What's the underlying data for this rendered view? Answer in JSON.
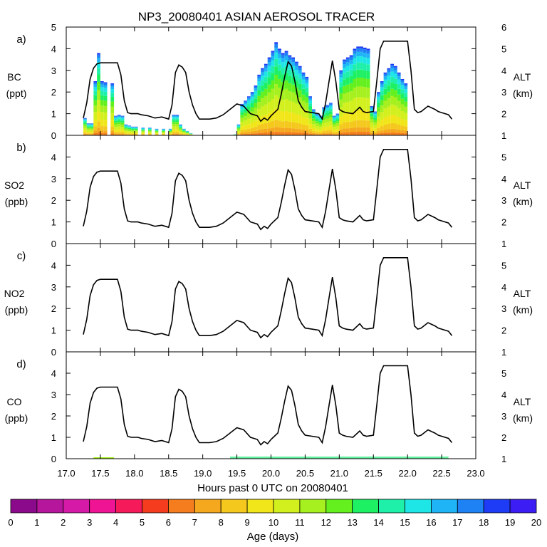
{
  "chart_data": {
    "type": "area",
    "title": "NP3_20080401 ASIAN AEROSOL TRACER",
    "xlabel": "Hours past 0 UTC on 20080401",
    "x_ticks": [
      "17.0",
      "17.5",
      "18.0",
      "18.5",
      "19.0",
      "19.5",
      "20.0",
      "20.5",
      "21.0",
      "21.5",
      "22.0",
      "22.5",
      "23.0"
    ],
    "xlim": [
      17.0,
      23.0
    ],
    "right_axis": {
      "label": "ALT",
      "unit": "(km)"
    },
    "altitude_km": {
      "x": [
        17.25,
        17.3,
        17.35,
        17.4,
        17.45,
        17.5,
        17.55,
        17.6,
        17.65,
        17.7,
        17.75,
        17.8,
        17.85,
        17.9,
        17.95,
        18.0,
        18.05,
        18.1,
        18.2,
        18.3,
        18.4,
        18.5,
        18.55,
        18.6,
        18.65,
        18.7,
        18.75,
        18.8,
        18.85,
        18.9,
        18.95,
        19.0,
        19.1,
        19.2,
        19.3,
        19.4,
        19.5,
        19.6,
        19.7,
        19.8,
        19.85,
        19.9,
        19.95,
        20.0,
        20.1,
        20.15,
        20.2,
        20.25,
        20.3,
        20.35,
        20.4,
        20.45,
        20.5,
        20.6,
        20.7,
        20.75,
        20.8,
        20.85,
        20.9,
        20.95,
        21.0,
        21.05,
        21.1,
        21.2,
        21.3,
        21.35,
        21.4,
        21.5,
        21.55,
        21.6,
        21.65,
        21.7,
        21.8,
        21.9,
        22.0,
        22.05,
        22.1,
        22.15,
        22.2,
        22.3,
        22.4,
        22.45,
        22.5,
        22.6,
        22.65
      ],
      "y": [
        1.8,
        2.5,
        3.6,
        4.1,
        4.3,
        4.35,
        4.35,
        4.35,
        4.35,
        4.35,
        4.35,
        3.8,
        2.6,
        2.05,
        2.0,
        2.0,
        2.0,
        1.95,
        1.9,
        1.8,
        1.85,
        1.75,
        2.4,
        3.9,
        4.25,
        4.15,
        3.9,
        3.0,
        2.4,
        2.0,
        1.75,
        1.75,
        1.75,
        1.8,
        1.95,
        2.2,
        2.45,
        2.35,
        2.0,
        1.9,
        1.65,
        1.8,
        1.7,
        1.9,
        2.2,
        2.9,
        3.7,
        4.4,
        4.2,
        3.5,
        2.6,
        2.3,
        2.1,
        2.05,
        2.0,
        1.75,
        2.5,
        3.5,
        4.45,
        3.5,
        2.2,
        2.1,
        2.05,
        2.0,
        2.3,
        2.1,
        2.05,
        2.1,
        3.5,
        5.0,
        5.35,
        5.35,
        5.35,
        5.35,
        5.35,
        4.0,
        2.2,
        2.05,
        2.1,
        2.35,
        2.2,
        2.1,
        2.05,
        1.95,
        1.75
      ]
    },
    "panels": [
      {
        "tag": "a)",
        "ylabel": "BC",
        "unit": "(ppt)",
        "ylim": [
          0,
          5
        ],
        "y_ticks": [
          "0",
          "1",
          "2",
          "3",
          "4",
          "5"
        ],
        "right_ticks": [
          "1",
          "2",
          "3",
          "4",
          "5",
          "6"
        ],
        "alt_range": [
          1,
          6
        ],
        "tracer_total": [
          0.8,
          0.55,
          0.55,
          2.5,
          3.8,
          2.5,
          2.45,
          2.4,
          0.9,
          0.95,
          0.9,
          0.5,
          0.45,
          0.4,
          0.4,
          0.35,
          0.35,
          0.3,
          0.3,
          0.3,
          0.95,
          0.95,
          0.5,
          0.3,
          0.2,
          0.1,
          0.0,
          0.0,
          0.0,
          0.0,
          0.0,
          0.0,
          0.0,
          0.0,
          0.05,
          0.5,
          1.45,
          1.6,
          1.8,
          2.0,
          2.3,
          2.8,
          3.1,
          3.3,
          3.6,
          3.9,
          4.3,
          4.0,
          3.8,
          3.9,
          3.7,
          3.6,
          3.4,
          3.2,
          2.9,
          2.7,
          1.8,
          1.2,
          1.0,
          0.9,
          1.3,
          1.4,
          1.5,
          0.9,
          1.0,
          3.0,
          3.5,
          3.6,
          3.7,
          4.0,
          4.1,
          4.1,
          4.05,
          4.0,
          1.35,
          1.1,
          2.0,
          2.5,
          2.9,
          3.1,
          3.3,
          3.2,
          2.9,
          2.6,
          2.4
        ],
        "tracer_x": [
          17.25,
          17.3,
          17.35,
          17.4,
          17.45,
          17.5,
          17.55,
          17.65,
          17.7,
          17.75,
          17.8,
          17.85,
          17.9,
          17.95,
          18.0,
          18.1,
          18.2,
          18.3,
          18.4,
          18.5,
          18.55,
          18.6,
          18.65,
          18.7,
          18.75,
          18.8,
          18.85,
          18.9,
          18.95,
          19.0,
          19.1,
          19.2,
          19.3,
          19.4,
          19.45,
          19.5,
          19.55,
          19.6,
          19.65,
          19.7,
          19.75,
          19.8,
          19.85,
          19.9,
          19.95,
          20.0,
          20.05,
          20.1,
          20.15,
          20.2,
          20.25,
          20.3,
          20.35,
          20.4,
          20.45,
          20.5,
          20.55,
          20.6,
          20.65,
          20.7,
          20.75,
          20.8,
          20.85,
          20.9,
          20.95,
          21.0,
          21.05,
          21.1,
          21.15,
          21.2,
          21.25,
          21.3,
          21.35,
          21.4,
          21.45,
          21.5,
          21.55,
          21.6,
          21.65,
          21.7,
          21.75,
          21.8,
          21.85,
          21.9,
          21.95
        ]
      },
      {
        "tag": "b)",
        "ylabel": "SO2",
        "unit": "(ppb)",
        "ylim": [
          0,
          5
        ],
        "y_ticks": [
          "0",
          "1",
          "2",
          "3",
          "4"
        ],
        "right_ticks": [
          "1",
          "2",
          "3",
          "4",
          "5"
        ],
        "alt_range": [
          1,
          6
        ]
      },
      {
        "tag": "c)",
        "ylabel": "NO2",
        "unit": "(ppb)",
        "ylim": [
          0,
          5
        ],
        "y_ticks": [
          "0",
          "1",
          "2",
          "3",
          "4"
        ],
        "right_ticks": [
          "1",
          "2",
          "3",
          "4",
          "5"
        ],
        "alt_range": [
          1,
          6
        ]
      },
      {
        "tag": "d)",
        "ylabel": "CO",
        "unit": "(ppb)",
        "ylim": [
          0,
          5
        ],
        "y_ticks": [
          "0",
          "1",
          "2",
          "3",
          "4"
        ],
        "right_ticks": [
          "1",
          "2",
          "3",
          "4",
          "5"
        ],
        "alt_range": [
          1,
          6
        ]
      }
    ],
    "colorbar": {
      "label": "Age (days)",
      "ticks": [
        "0",
        "1",
        "2",
        "3",
        "4",
        "5",
        "6",
        "7",
        "8",
        "9",
        "10",
        "11",
        "12",
        "13",
        "14",
        "15",
        "16",
        "17",
        "18",
        "19",
        "20"
      ],
      "colors": [
        "#8b0a8b",
        "#b5169c",
        "#d61aa8",
        "#ee1493",
        "#f51a5a",
        "#f53c1e",
        "#f57d1e",
        "#f5a81e",
        "#f5c81e",
        "#f0e61a",
        "#d2f01e",
        "#a5f01e",
        "#64f01e",
        "#1ef064",
        "#1ef0aa",
        "#1ee6e6",
        "#1eb4f5",
        "#1e82f5",
        "#1e3cf5",
        "#3c1ef5"
      ]
    }
  }
}
